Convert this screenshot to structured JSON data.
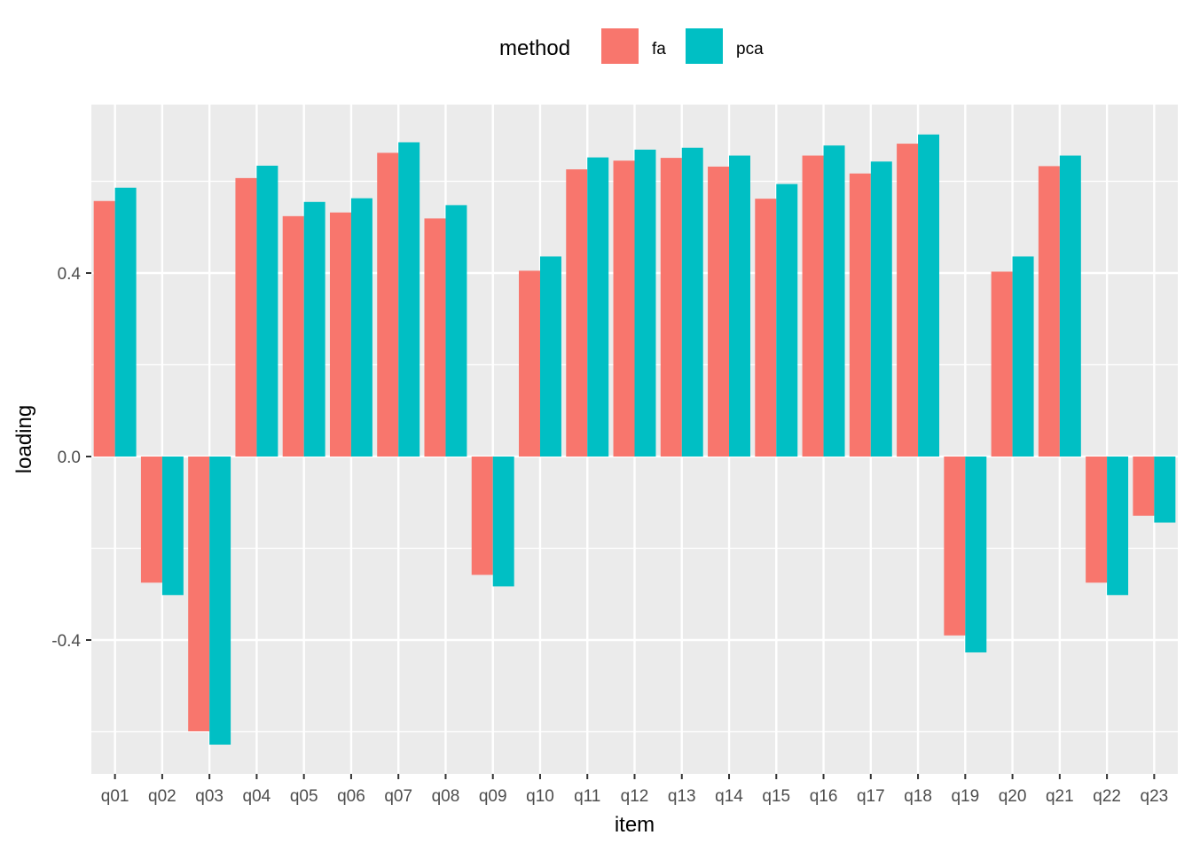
{
  "chart_data": {
    "type": "bar",
    "title": "",
    "xlabel": "item",
    "ylabel": "loading",
    "ylim": [
      -0.69,
      0.77
    ],
    "yticks": [
      -0.4,
      0.0,
      0.4
    ],
    "ytick_labels": [
      "-0.4",
      "0.0",
      "0.4"
    ],
    "grid": true,
    "legend": {
      "title": "method",
      "placement": "top"
    },
    "categories": [
      "q01",
      "q02",
      "q03",
      "q04",
      "q05",
      "q06",
      "q07",
      "q08",
      "q09",
      "q10",
      "q11",
      "q12",
      "q13",
      "q14",
      "q15",
      "q16",
      "q17",
      "q18",
      "q19",
      "q20",
      "q21",
      "q22",
      "q23"
    ],
    "series": [
      {
        "name": "fa",
        "color": "#F8766D",
        "values": [
          0.557,
          -0.275,
          -0.599,
          0.607,
          0.524,
          0.532,
          0.662,
          0.519,
          -0.258,
          0.405,
          0.626,
          0.645,
          0.651,
          0.632,
          0.562,
          0.656,
          0.617,
          0.682,
          -0.39,
          0.403,
          0.633,
          -0.275,
          -0.129
        ]
      },
      {
        "name": "pca",
        "color": "#00BFC4",
        "values": [
          0.586,
          -0.302,
          -0.628,
          0.634,
          0.555,
          0.563,
          0.685,
          0.548,
          -0.283,
          0.436,
          0.652,
          0.669,
          0.673,
          0.656,
          0.594,
          0.678,
          0.643,
          0.702,
          -0.427,
          0.436,
          0.656,
          -0.302,
          -0.144
        ]
      }
    ]
  }
}
